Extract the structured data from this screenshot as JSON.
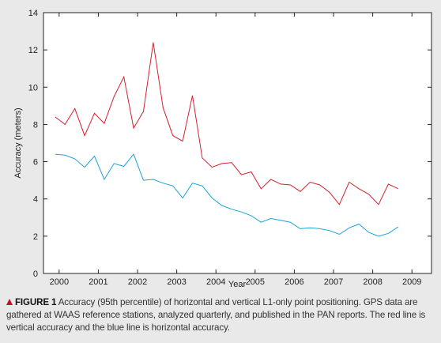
{
  "chart_data": {
    "type": "line",
    "xlabel": "Year",
    "ylabel": "Accuracy (meters)",
    "xlim": [
      1999.6,
      2009.5
    ],
    "ylim": [
      0,
      14
    ],
    "xticks": [
      2000,
      2001,
      2002,
      2003,
      2004,
      2005,
      2006,
      2007,
      2008,
      2009
    ],
    "yticks": [
      0,
      2,
      4,
      6,
      8,
      10,
      12,
      14
    ],
    "grid": false,
    "legend": "none",
    "series": [
      {
        "color": "#d6202f",
        "x": [
          1999.9,
          2000.15,
          2000.4,
          2000.65,
          2000.9,
          2001.15,
          2001.4,
          2001.65,
          2001.9,
          2002.15,
          2002.4,
          2002.65,
          2002.9,
          2003.15,
          2003.4,
          2003.65,
          2003.9,
          2004.15,
          2004.4,
          2004.65,
          2004.9,
          2005.15,
          2005.4,
          2005.65,
          2005.9,
          2006.15,
          2006.4,
          2006.65,
          2006.9,
          2007.15,
          2007.4,
          2007.65,
          2007.9,
          2008.15,
          2008.4,
          2008.65
        ],
        "values": [
          8.4,
          8.0,
          8.85,
          7.4,
          8.6,
          8.05,
          9.5,
          10.55,
          7.8,
          8.7,
          12.4,
          8.9,
          7.4,
          7.1,
          9.55,
          6.2,
          5.7,
          5.9,
          5.95,
          5.3,
          5.45,
          4.55,
          5.05,
          4.8,
          4.75,
          4.4,
          4.9,
          4.75,
          4.35,
          3.7,
          4.9,
          4.55,
          4.25,
          3.7,
          4.8,
          4.55
        ]
      },
      {
        "color": "#1aa3d8",
        "x": [
          1999.9,
          2000.15,
          2000.4,
          2000.65,
          2000.9,
          2001.15,
          2001.4,
          2001.65,
          2001.9,
          2002.15,
          2002.4,
          2002.65,
          2002.9,
          2003.15,
          2003.4,
          2003.65,
          2003.9,
          2004.15,
          2004.4,
          2004.65,
          2004.9,
          2005.15,
          2005.4,
          2005.65,
          2005.9,
          2006.15,
          2006.4,
          2006.65,
          2006.9,
          2007.15,
          2007.4,
          2007.65,
          2007.9,
          2008.15,
          2008.4,
          2008.65
        ],
        "values": [
          6.4,
          6.35,
          6.15,
          5.7,
          6.3,
          5.05,
          5.9,
          5.75,
          6.4,
          5.0,
          5.05,
          4.85,
          4.7,
          4.05,
          4.85,
          4.7,
          4.05,
          3.65,
          3.45,
          3.3,
          3.1,
          2.75,
          2.95,
          2.85,
          2.75,
          2.4,
          2.45,
          2.4,
          2.3,
          2.1,
          2.45,
          2.65,
          2.2,
          2.0,
          2.15,
          2.5
        ]
      }
    ]
  },
  "caption": {
    "lead": "FIGURE 1",
    "text": " Accuracy (95th percentile) of horizontal and vertical L1-only point positioning. GPS data are gathered at WAAS reference stations, analyzed quarterly, and published in the PAN reports. The red line is vertical accuracy and the blue line is horizontal accuracy."
  }
}
